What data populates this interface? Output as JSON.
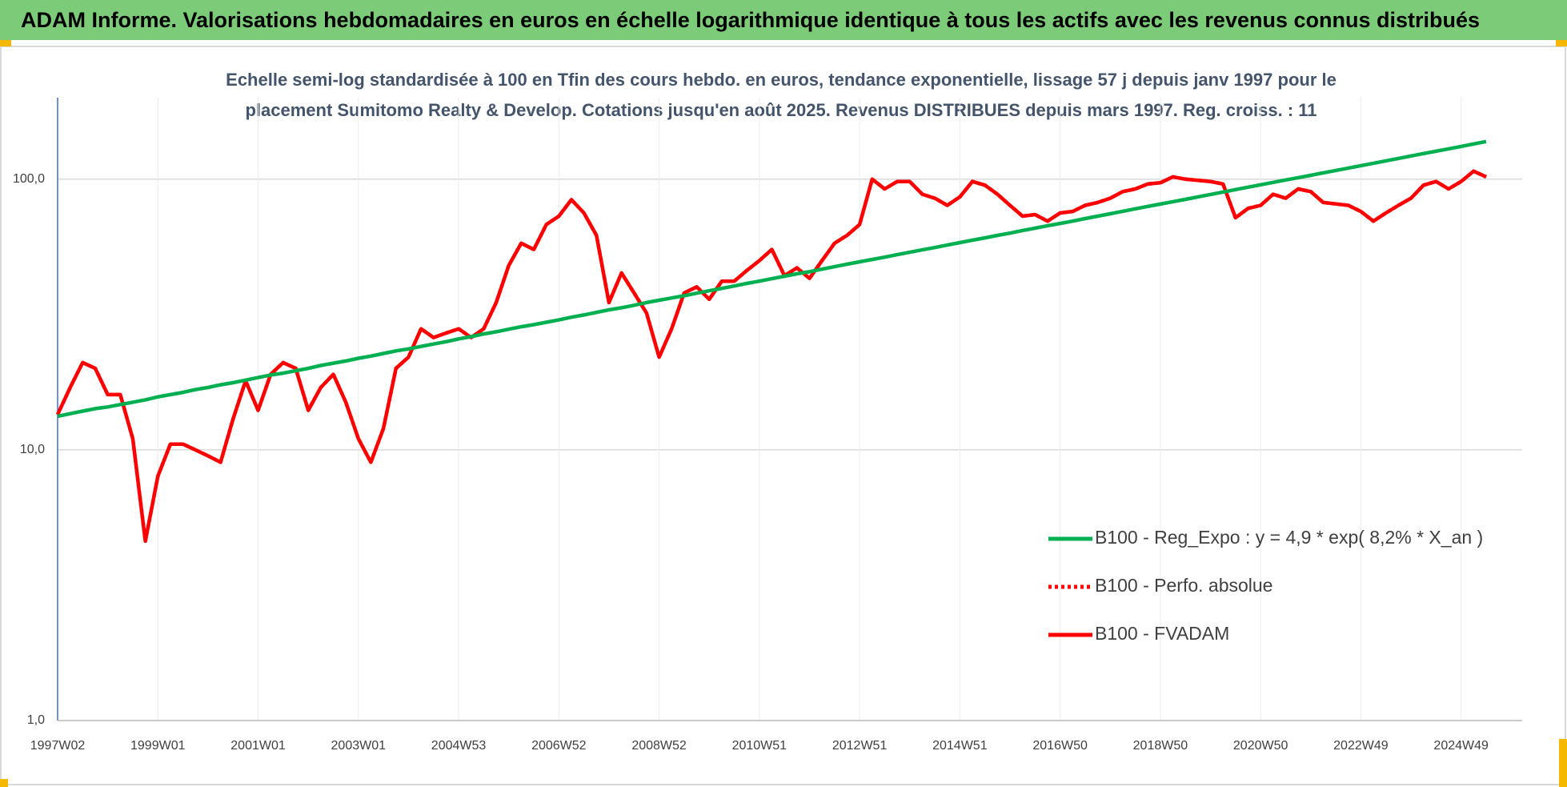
{
  "header": {
    "title": "ADAM Informe. Valorisations hebdomadaires en euros en échelle logarithmique identique à tous les actifs avec les revenus connus distribués"
  },
  "chart_data": {
    "type": "line",
    "title": [
      "Echelle semi-log standardisée à 100 en Tfin des cours hebdo. en euros, tendance exponentielle, lissage 57 j depuis janv 1997 pour le",
      "placement Sumitomo Realty & Develop. Cotations jusqu'en août 2025. Revenus DISTRIBUES depuis mars 1997. Reg. croiss. : 11"
    ],
    "categories": [
      "1997W02",
      null,
      null,
      null,
      null,
      null,
      null,
      null,
      "1999W01",
      null,
      null,
      null,
      null,
      null,
      null,
      null,
      "2001W01",
      null,
      null,
      null,
      null,
      null,
      null,
      null,
      "2003W01",
      null,
      null,
      null,
      null,
      null,
      null,
      null,
      "2004W53",
      null,
      null,
      null,
      null,
      null,
      null,
      null,
      "2006W52",
      null,
      null,
      null,
      null,
      null,
      null,
      null,
      "2008W52",
      null,
      null,
      null,
      null,
      null,
      null,
      null,
      "2010W51",
      null,
      null,
      null,
      null,
      null,
      null,
      null,
      "2012W51",
      null,
      null,
      null,
      null,
      null,
      null,
      null,
      "2014W51",
      null,
      null,
      null,
      null,
      null,
      null,
      null,
      "2016W50",
      null,
      null,
      null,
      null,
      null,
      null,
      null,
      "2018W50",
      null,
      null,
      null,
      null,
      null,
      null,
      null,
      "2020W50",
      null,
      null,
      null,
      null,
      null,
      null,
      null,
      "2022W49",
      null,
      null,
      null,
      null,
      null,
      null,
      null,
      "2024W49",
      null,
      null
    ],
    "series": [
      {
        "name": "B100 - Reg_Expo : y = 4,9 * exp( 8,2% *  X_an )",
        "color": "#00b050",
        "linestyle": "solid",
        "values": [
          13.3,
          13.6,
          13.9,
          14.2,
          14.4,
          14.7,
          15.0,
          15.3,
          15.7,
          16.0,
          16.3,
          16.7,
          17.0,
          17.4,
          17.7,
          18.1,
          18.5,
          18.9,
          19.2,
          19.6,
          20.0,
          20.5,
          20.9,
          21.3,
          21.8,
          22.2,
          22.7,
          23.2,
          23.6,
          24.1,
          24.6,
          25.1,
          25.7,
          26.2,
          26.8,
          27.3,
          27.9,
          28.5,
          29.0,
          29.6,
          30.2,
          30.9,
          31.5,
          32.2,
          32.9,
          33.5,
          34.2,
          35.0,
          35.7,
          36.4,
          37.1,
          37.9,
          38.7,
          39.5,
          40.3,
          41.2,
          42.0,
          42.9,
          43.8,
          44.7,
          45.5,
          46.5,
          47.5,
          48.5,
          49.5,
          50.5,
          51.5,
          52.6,
          53.7,
          54.8,
          55.9,
          57.1,
          58.3,
          59.5,
          60.7,
          62.0,
          63.2,
          64.6,
          65.9,
          67.3,
          68.6,
          70.0,
          71.5,
          73.0,
          74.5,
          76.1,
          77.7,
          79.3,
          80.9,
          82.6,
          84.2,
          86.0,
          87.8,
          89.6,
          91.5,
          93.4,
          95.3,
          97.3,
          99.3,
          101.3,
          103.3,
          105.5,
          107.7,
          109.9,
          112.2,
          114.5,
          116.9,
          119.3,
          121.8,
          124.3,
          126.8,
          129.4,
          132.1,
          134.9,
          137.7
        ]
      },
      {
        "name": "B100 - Perfo. absolue",
        "color": "#ff0000",
        "linestyle": "dotted",
        "values": [
          13.5,
          17,
          21,
          20,
          16,
          16,
          11,
          4.6,
          8,
          10.5,
          10.5,
          10,
          9.5,
          9,
          13,
          18,
          14,
          19,
          21,
          20,
          14,
          17,
          19,
          15,
          11,
          9,
          12,
          20,
          22,
          28,
          26,
          27,
          28,
          26,
          28,
          35,
          48,
          58,
          55,
          68,
          73,
          84,
          75,
          62,
          35,
          45,
          38,
          32,
          22,
          28,
          38,
          40,
          36,
          42,
          42,
          46,
          50,
          55,
          44,
          47,
          43,
          50,
          58,
          62,
          68,
          100,
          92,
          98,
          98,
          88,
          85,
          80,
          86,
          98,
          95,
          88,
          80,
          73,
          74,
          70,
          75,
          76,
          80,
          82,
          85,
          90,
          92,
          96,
          97,
          102,
          100,
          99,
          98,
          96,
          72,
          78,
          80,
          88,
          85,
          92,
          90,
          82,
          81,
          80,
          76,
          70,
          75,
          80,
          85,
          95,
          98,
          92,
          98,
          107,
          102
        ]
      },
      {
        "name": "B100 - FVADAM",
        "color": "#ff0000",
        "linestyle": "solid",
        "values": [
          13.5,
          17,
          21,
          20,
          16,
          16,
          11,
          4.6,
          8,
          10.5,
          10.5,
          10,
          9.5,
          9,
          13,
          18,
          14,
          19,
          21,
          20,
          14,
          17,
          19,
          15,
          11,
          9,
          12,
          20,
          22,
          28,
          26,
          27,
          28,
          26,
          28,
          35,
          48,
          58,
          55,
          68,
          73,
          84,
          75,
          62,
          35,
          45,
          38,
          32,
          22,
          28,
          38,
          40,
          36,
          42,
          42,
          46,
          50,
          55,
          44,
          47,
          43,
          50,
          58,
          62,
          68,
          100,
          92,
          98,
          98,
          88,
          85,
          80,
          86,
          98,
          95,
          88,
          80,
          73,
          74,
          70,
          75,
          76,
          80,
          82,
          85,
          90,
          92,
          96,
          97,
          102,
          100,
          99,
          98,
          96,
          72,
          78,
          80,
          88,
          85,
          92,
          90,
          82,
          81,
          80,
          76,
          70,
          75,
          80,
          85,
          95,
          98,
          92,
          98,
          107,
          102
        ]
      }
    ],
    "ylim": [
      1,
      200
    ],
    "log_scale": true,
    "yticks": [
      {
        "value": 1,
        "label": "1,0"
      },
      {
        "value": 10,
        "label": "10,0"
      },
      {
        "value": 100,
        "label": "100,0"
      }
    ],
    "grid": true,
    "legend": "lower right"
  }
}
